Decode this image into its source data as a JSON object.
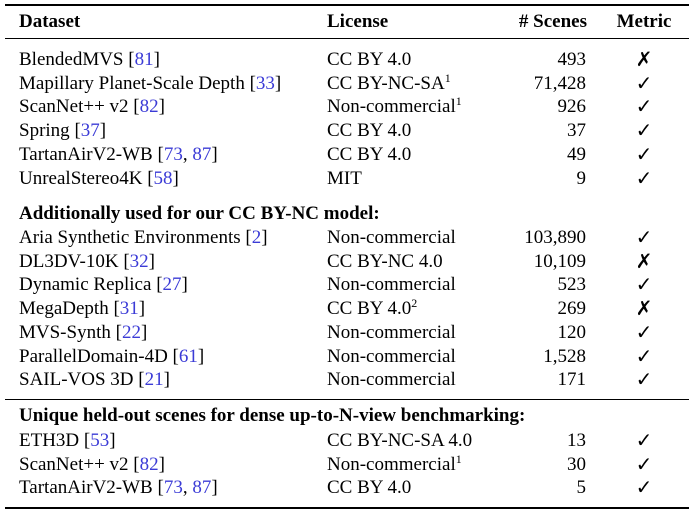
{
  "header": {
    "dataset": "Dataset",
    "license": "License",
    "scenes": "# Scenes",
    "metric": "Metric"
  },
  "sections": [
    {
      "title": "",
      "rows": [
        {
          "name": "BlendedMVS",
          "refs": [
            "81"
          ],
          "license": "CC BY 4.0",
          "sup": "",
          "scenes": "493",
          "metric": "✗"
        },
        {
          "name": "Mapillary Planet-Scale Depth",
          "refs": [
            "33"
          ],
          "license": "CC BY-NC-SA",
          "sup": "1",
          "scenes": "71,428",
          "metric": "✓"
        },
        {
          "name": "ScanNet++ v2",
          "refs": [
            "82"
          ],
          "license": "Non-commercial",
          "sup": "1",
          "scenes": "926",
          "metric": "✓"
        },
        {
          "name": "Spring",
          "refs": [
            "37"
          ],
          "license": "CC BY 4.0",
          "sup": "",
          "scenes": "37",
          "metric": "✓"
        },
        {
          "name": "TartanAirV2-WB",
          "refs": [
            "73",
            "87"
          ],
          "license": "CC BY 4.0",
          "sup": "",
          "scenes": "49",
          "metric": "✓"
        },
        {
          "name": "UnrealStereo4K",
          "refs": [
            "58"
          ],
          "license": "MIT",
          "sup": "",
          "scenes": "9",
          "metric": "✓"
        }
      ]
    },
    {
      "title": "Additionally used for our CC BY-NC model:",
      "rows": [
        {
          "name": "Aria Synthetic Environments",
          "refs": [
            "2"
          ],
          "license": "Non-commercial",
          "sup": "",
          "scenes": "103,890",
          "metric": "✓"
        },
        {
          "name": "DL3DV-10K",
          "refs": [
            "32"
          ],
          "license": "CC BY-NC 4.0",
          "sup": "",
          "scenes": "10,109",
          "metric": "✗"
        },
        {
          "name": "Dynamic Replica",
          "refs": [
            "27"
          ],
          "license": "Non-commercial",
          "sup": "",
          "scenes": "523",
          "metric": "✓"
        },
        {
          "name": "MegaDepth",
          "refs": [
            "31"
          ],
          "license": "CC BY 4.0",
          "sup": "2",
          "scenes": "269",
          "metric": "✗"
        },
        {
          "name": "MVS-Synth",
          "refs": [
            "22"
          ],
          "license": "Non-commercial",
          "sup": "",
          "scenes": "120",
          "metric": "✓"
        },
        {
          "name": "ParallelDomain-4D",
          "refs": [
            "61"
          ],
          "license": "Non-commercial",
          "sup": "",
          "scenes": "1,528",
          "metric": "✓"
        },
        {
          "name": "SAIL-VOS 3D",
          "refs": [
            "21"
          ],
          "license": "Non-commercial",
          "sup": "",
          "scenes": "171",
          "metric": "✓"
        }
      ]
    },
    {
      "title": "Unique held-out scenes for dense up-to-N-view benchmarking:",
      "rows": [
        {
          "name": "ETH3D",
          "refs": [
            "53"
          ],
          "license": "CC BY-NC-SA 4.0",
          "sup": "",
          "scenes": "13",
          "metric": "✓"
        },
        {
          "name": "ScanNet++ v2",
          "refs": [
            "82"
          ],
          "license": "Non-commercial",
          "sup": "1",
          "scenes": "30",
          "metric": "✓"
        },
        {
          "name": "TartanAirV2-WB",
          "refs": [
            "73",
            "87"
          ],
          "license": "CC BY 4.0",
          "sup": "",
          "scenes": "5",
          "metric": "✓"
        }
      ]
    }
  ],
  "colors": {
    "citation": "#3b3bd6",
    "text": "#000000"
  }
}
